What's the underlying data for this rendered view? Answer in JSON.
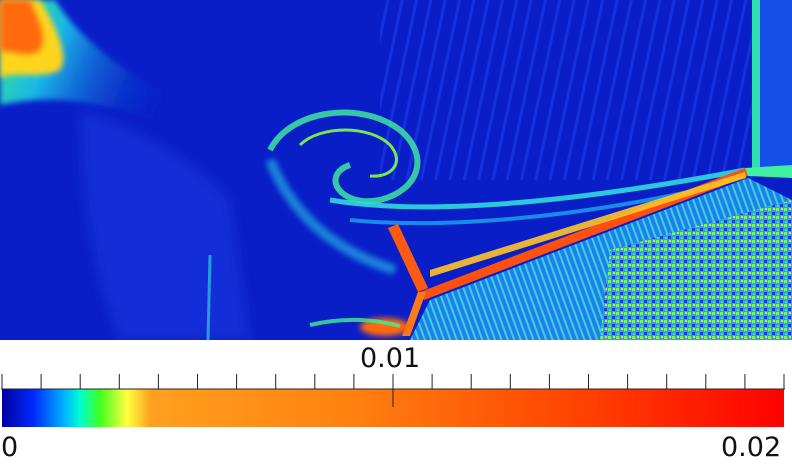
{
  "colorbar": {
    "min_label": "0",
    "mid_label": "0.01",
    "max_label": "0.02",
    "range": [
      0,
      0.02
    ],
    "colormap": [
      "#0000a0",
      "#0020ff",
      "#00d0ff",
      "#00ff80",
      "#60ff00",
      "#ffff40",
      "#ffb020",
      "#ff8c10",
      "#ff4800",
      "#ff0000"
    ]
  },
  "field": {
    "background_color": "#0a1ec8"
  }
}
